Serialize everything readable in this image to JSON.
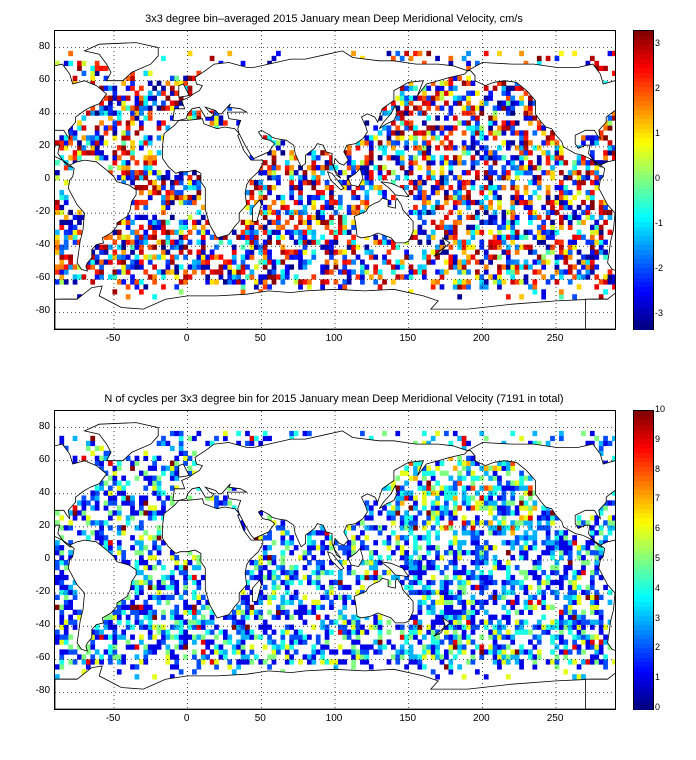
{
  "map_top": {
    "title": "3x3 degree bin–averaged 2015 January mean Deep Meridional Velocity, cm/s",
    "x_ticks": [
      "-50",
      "0",
      "50",
      "100",
      "150",
      "200",
      "250"
    ],
    "y_ticks": [
      "80",
      "60",
      "40",
      "20",
      "0",
      "-20",
      "-40",
      "-60",
      "-80"
    ],
    "colorbar_ticks": [
      "3",
      "2",
      "1",
      "0",
      "-1",
      "-2",
      "-3"
    ],
    "colorbar_range": [
      -3.3,
      3.3
    ],
    "x_range": [
      -90,
      290
    ],
    "y_range": [
      -90,
      90
    ],
    "bin_size_deg": 3,
    "colormap": "jet"
  },
  "map_bottom": {
    "title": "N of cycles per 3x3 degree bin for 2015 January mean Deep Meridional Velocity (7191 in total)",
    "x_ticks": [
      "-50",
      "0",
      "50",
      "100",
      "150",
      "200",
      "250"
    ],
    "y_ticks": [
      "80",
      "60",
      "40",
      "20",
      "0",
      "-20",
      "-40",
      "-60",
      "-80"
    ],
    "colorbar_ticks": [
      "10",
      "9",
      "8",
      "7",
      "6",
      "5",
      "4",
      "3",
      "2",
      "1",
      "0"
    ],
    "colorbar_range": [
      0,
      10
    ],
    "x_range": [
      -90,
      290
    ],
    "y_range": [
      -90,
      90
    ],
    "bin_size_deg": 3,
    "colormap": "jet"
  }
}
